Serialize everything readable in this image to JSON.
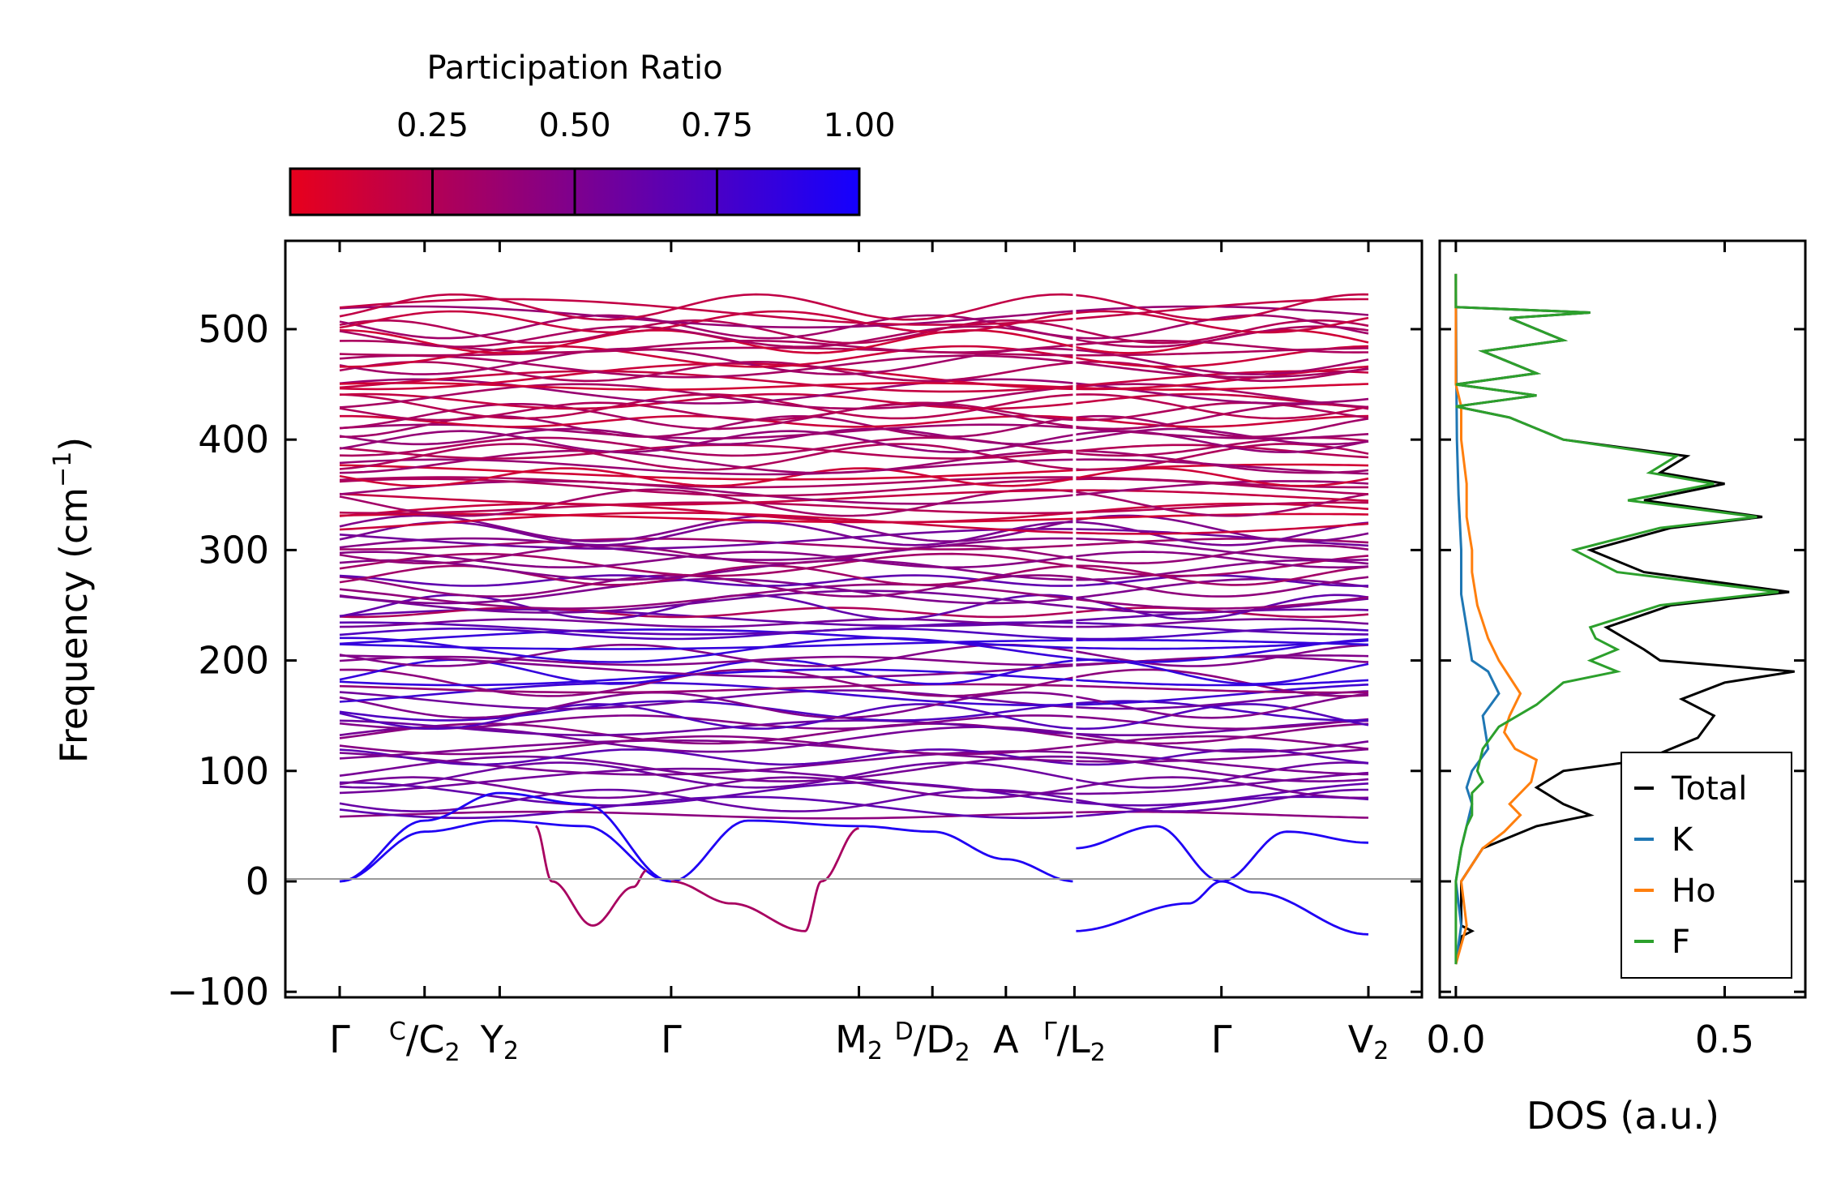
{
  "colorbar": {
    "title": "Participation Ratio",
    "tick_labels": [
      "0.25",
      "0.50",
      "0.75",
      "1.00"
    ],
    "ticks": [
      0.25,
      0.5,
      0.75,
      1.0
    ],
    "range": [
      0.0,
      1.0
    ],
    "color_low": "#e8001c",
    "color_high": "#1400ff"
  },
  "chart_data": [
    {
      "type": "line",
      "title": "",
      "xlabel": "",
      "ylabel": "Frequency (cm⁻¹)",
      "ylabel_parts": {
        "main": "Frequency (cm",
        "sup": "−1",
        "end": ")"
      },
      "ylim": [
        -105,
        580
      ],
      "yticks": [
        -100,
        0,
        100,
        200,
        300,
        400,
        500
      ],
      "ytick_labels": [
        "−100",
        "0",
        "100",
        "200",
        "300",
        "400",
        "500"
      ],
      "kpath_segments": [
        {
          "x": [
            0,
            4.5
          ],
          "labels": [
            "Γ",
            "C|C₂",
            "Y₂",
            "Γ",
            "M₂",
            "D|D₂",
            "A",
            "Γ|L₂"
          ]
        },
        {
          "x": [
            4.5,
            6.3
          ],
          "labels": [
            "Γ|L₂",
            "Γ",
            "V₂"
          ]
        }
      ],
      "kpoints": [
        {
          "x": 0.0,
          "main": "Γ",
          "sub": ""
        },
        {
          "x": 0.52,
          "main": "C",
          "slash": "C",
          "sub2": "2",
          "style": "split"
        },
        {
          "x": 0.98,
          "main": "Y",
          "sub": "2"
        },
        {
          "x": 2.03,
          "main": "Γ",
          "sub": ""
        },
        {
          "x": 3.18,
          "main": "M",
          "sub": "2"
        },
        {
          "x": 3.63,
          "main": "D",
          "slash": "D",
          "sub2": "2",
          "style": "split"
        },
        {
          "x": 4.08,
          "main": "A",
          "sub": ""
        },
        {
          "x": 4.5,
          "main": "Γ",
          "slash": "L",
          "sub2": "2",
          "style": "split"
        },
        {
          "x": 5.4,
          "main": "Γ",
          "sub": ""
        },
        {
          "x": 6.3,
          "main": "V",
          "sub": "2"
        }
      ],
      "acoustic_branches": [
        {
          "name": "acoustic-1",
          "x": [
            0,
            0.52,
            0.98,
            1.5,
            2.03
          ],
          "y": [
            0,
            45,
            55,
            50,
            0
          ]
        },
        {
          "name": "acoustic-2",
          "x": [
            0,
            0.52,
            0.98,
            1.5,
            2.03
          ],
          "y": [
            0,
            55,
            80,
            70,
            0
          ]
        },
        {
          "name": "imaginary-1",
          "x": [
            1.2,
            1.3,
            1.55,
            1.8,
            1.88
          ],
          "y": [
            50,
            0,
            -40,
            -5,
            10
          ]
        },
        {
          "name": "acoustic-3",
          "x": [
            2.03,
            2.5,
            3.18,
            3.63,
            4.08,
            4.5
          ],
          "y": [
            0,
            55,
            50,
            45,
            20,
            0
          ]
        },
        {
          "name": "imaginary-2",
          "x": [
            2.03,
            2.4,
            2.85,
            2.95,
            3.18
          ],
          "y": [
            0,
            -20,
            -45,
            0,
            48
          ]
        },
        {
          "name": "acoustic-4",
          "x": [
            4.5,
            5.2,
            5.4,
            5.6,
            6.3
          ],
          "y": [
            -45,
            -20,
            0,
            -10,
            -48
          ]
        },
        {
          "name": "acoustic-5",
          "x": [
            4.5,
            5.0,
            5.4,
            5.8,
            6.3
          ],
          "y": [
            30,
            50,
            0,
            45,
            35
          ]
        }
      ],
      "flat_band_count": 96,
      "band_frequency_range": [
        60,
        520
      ]
    },
    {
      "type": "line",
      "xlabel": "DOS (a.u.)",
      "ylabel": "",
      "xlim": [
        -0.03,
        0.65
      ],
      "ylim": [
        -105,
        580
      ],
      "xticks": [
        0.0,
        0.5
      ],
      "xtick_labels": [
        "0.0",
        "0.5"
      ],
      "series": [
        {
          "name": "Total",
          "color": "#000000",
          "y": [
            -75,
            -50,
            -45,
            -40,
            0,
            30,
            50,
            60,
            70,
            85,
            100,
            110,
            130,
            150,
            165,
            180,
            190,
            200,
            210,
            230,
            250,
            262,
            280,
            300,
            320,
            330,
            345,
            360,
            370,
            385,
            400,
            420,
            430,
            440,
            450,
            460,
            480,
            490,
            500,
            510,
            515,
            520,
            540,
            550
          ],
          "values": [
            0.0,
            0.01,
            0.03,
            0.01,
            0.01,
            0.05,
            0.15,
            0.25,
            0.2,
            0.15,
            0.2,
            0.35,
            0.45,
            0.48,
            0.42,
            0.5,
            0.63,
            0.38,
            0.35,
            0.28,
            0.4,
            0.62,
            0.35,
            0.25,
            0.4,
            0.57,
            0.35,
            0.5,
            0.38,
            0.43,
            0.2,
            0.1,
            0.0,
            0.15,
            0.0,
            0.15,
            0.05,
            0.2,
            0.15,
            0.1,
            0.25,
            0.0,
            0.0,
            0.0
          ]
        },
        {
          "name": "K",
          "color": "#1f77b4",
          "y": [
            -75,
            -40,
            0,
            30,
            50,
            70,
            85,
            100,
            120,
            150,
            170,
            190,
            200,
            230,
            260,
            300,
            350,
            400,
            450,
            550
          ],
          "values": [
            0.0,
            0.01,
            0.0,
            0.01,
            0.02,
            0.03,
            0.02,
            0.03,
            0.06,
            0.05,
            0.08,
            0.06,
            0.03,
            0.02,
            0.01,
            0.01,
            0.005,
            0.002,
            0.001,
            0.0
          ]
        },
        {
          "name": "Ho",
          "color": "#ff7f0e",
          "y": [
            -75,
            -40,
            0,
            30,
            45,
            60,
            70,
            90,
            110,
            120,
            135,
            150,
            170,
            185,
            200,
            220,
            250,
            280,
            300,
            330,
            360,
            400,
            430,
            450,
            480,
            520,
            550
          ],
          "values": [
            0.0,
            0.02,
            0.01,
            0.05,
            0.09,
            0.12,
            0.1,
            0.14,
            0.15,
            0.11,
            0.09,
            0.1,
            0.12,
            0.1,
            0.08,
            0.06,
            0.04,
            0.03,
            0.03,
            0.02,
            0.02,
            0.01,
            0.01,
            0.0,
            0.0,
            0.0,
            0.0
          ]
        },
        {
          "name": "F",
          "color": "#2ca02c",
          "y": [
            -75,
            -40,
            0,
            30,
            50,
            60,
            80,
            90,
            100,
            120,
            140,
            160,
            180,
            190,
            200,
            210,
            220,
            230,
            250,
            262,
            280,
            300,
            320,
            330,
            345,
            360,
            370,
            385,
            400,
            420,
            430,
            440,
            450,
            460,
            480,
            490,
            500,
            510,
            515,
            520,
            540,
            550
          ],
          "values": [
            0.0,
            0.0,
            0.0,
            0.01,
            0.02,
            0.03,
            0.03,
            0.05,
            0.04,
            0.05,
            0.08,
            0.15,
            0.2,
            0.3,
            0.25,
            0.3,
            0.26,
            0.25,
            0.38,
            0.6,
            0.3,
            0.22,
            0.38,
            0.56,
            0.32,
            0.48,
            0.36,
            0.41,
            0.2,
            0.1,
            0.0,
            0.15,
            0.0,
            0.15,
            0.05,
            0.2,
            0.15,
            0.1,
            0.25,
            0.0,
            0.0,
            0.0
          ]
        }
      ],
      "legend": {
        "entries": [
          "Total",
          "K",
          "Ho",
          "F"
        ],
        "placement": "lower-right"
      }
    }
  ]
}
